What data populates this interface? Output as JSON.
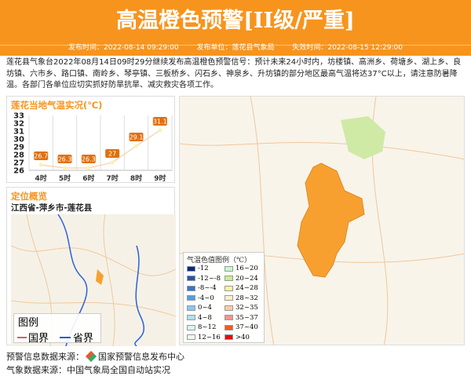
{
  "header": {
    "title": "高温橙色预警[II级/严重]",
    "publish_time": "发布时间：2022-08-14 09:29:00",
    "publisher": "发布单位：莲花县气象局",
    "expire_time": "失效时间：2022-08-15 12:29:00"
  },
  "description": "莲花县气象台2022年08月14日09时29分继续发布高温橙色预警信号：预计未来24小时内，坊楼镇、高洲乡、荷塘乡、湖上乡、良坊镇、六市乡、路口镇、南岭乡、琴亭镇、三板桥乡、闪石乡、神泉乡、升坊镇的部分地区最高气温将达37°C以上，请注意防暑降温。各部门各单位应切实抓好防旱抗旱、减灾救灾各项工作。",
  "temp_panel": {
    "title": "莲花当地气温实况(℃)"
  },
  "chart_data": {
    "type": "line",
    "categories": [
      "4时",
      "5时",
      "6时",
      "7时",
      "8时",
      "9时"
    ],
    "values": [
      26.7,
      26.3,
      26.3,
      27,
      29.1,
      31.1
    ],
    "ylim": [
      26,
      33
    ],
    "yticks": [
      26,
      27,
      28,
      29,
      30,
      31,
      32,
      33
    ],
    "grid": true,
    "line_color": "#f5d0b0",
    "label_color": "#e07010"
  },
  "location_panel": {
    "title": "定位概览",
    "location": "江西省-萍乡市-莲花县",
    "legend_title": "图例",
    "legend_items": [
      {
        "label": "国界",
        "color": "#d06070"
      },
      {
        "label": "省界",
        "color": "#1a5fd0"
      }
    ]
  },
  "temp_legend": {
    "title": "气温色值图例（℃）",
    "items": [
      {
        "label": "-12",
        "color": "#0a2a80"
      },
      {
        "label": "-12~-8",
        "color": "#1e5aa8"
      },
      {
        "label": "-8~-4",
        "color": "#2f78d0"
      },
      {
        "label": "-4~0",
        "color": "#4aa0e8"
      },
      {
        "label": "0~4",
        "color": "#86caf5"
      },
      {
        "label": "4~8",
        "color": "#b0e0f2"
      },
      {
        "label": "8~12",
        "color": "#d6f6fa"
      },
      {
        "label": "12~16",
        "color": "#eefaea"
      },
      {
        "label": "16~20",
        "color": "#ccf5cc"
      },
      {
        "label": "20~24",
        "color": "#c4f08c"
      },
      {
        "label": "24~28",
        "color": "#fafa9a"
      },
      {
        "label": "28~32",
        "color": "#fcefcc"
      },
      {
        "label": "32~35",
        "color": "#fccca4"
      },
      {
        "label": "35~37",
        "color": "#f5968a"
      },
      {
        "label": "37~40",
        "color": "#f55a1e"
      },
      {
        "label": ">40",
        "color": "#e01010"
      }
    ]
  },
  "footer": {
    "warning_source": "预警信息数据来源：",
    "warning_center": "国家预警信息发布中心",
    "weather_source": "气象数据来源：中国气象局全国自动站实况"
  }
}
